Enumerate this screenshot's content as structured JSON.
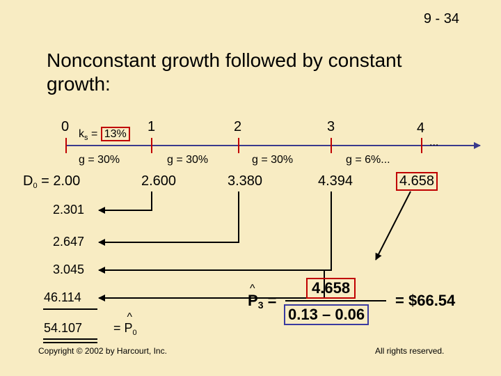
{
  "slide_number": "9 - 34",
  "title": "Nonconstant growth followed by constant growth:",
  "timeline": {
    "periods": [
      "0",
      "1",
      "2",
      "3",
      "4"
    ],
    "ks_label": "k",
    "ks_sub": "s",
    "ks_eq": "=",
    "ks_value": "13%",
    "growth_rates": [
      "g = 30%",
      "g = 30%",
      "g = 30%",
      "g = 6%..."
    ],
    "ellipsis": "...",
    "d0_label": "D",
    "d0_sub": "0",
    "d0_value": "= 2.00",
    "dividends": [
      "2.600",
      "3.380",
      "4.394",
      "4.658"
    ]
  },
  "present_values": [
    "2.301",
    "2.647",
    "3.045",
    "46.114",
    "54.107"
  ],
  "p0": {
    "eq": "=",
    "hat": "^",
    "label": "P",
    "sub": "0"
  },
  "formula": {
    "p_label": "P",
    "p_sub": "3",
    "eq": "=",
    "numerator": "4.658",
    "denominator_left": "0.13",
    "minus": "–",
    "denominator_right": "0.06",
    "result_eq": "=",
    "result": "$66.54"
  },
  "footer": {
    "copyright": "Copyright © 2002 by Harcourt, Inc.",
    "rights": "All rights reserved."
  },
  "colors": {
    "background": "#f8ecc3",
    "timeline_line": "#3a3a8c",
    "tick": "#c00000",
    "highlight_box": "#c00000",
    "denominator_box": "#3a3aa0"
  }
}
